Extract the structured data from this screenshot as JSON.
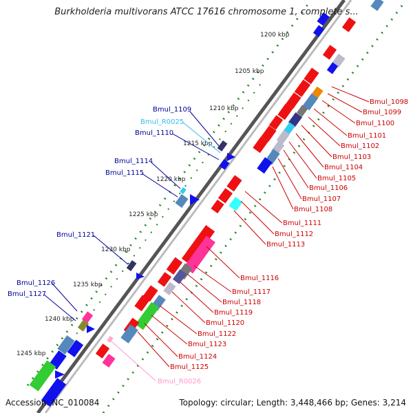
{
  "title": "Burkholderia multivorans ATCC 17616 chromosome 1, complete s...",
  "accession": "Accession: NC_010084",
  "summary": "Topology: circular; Length: 3,448,466 bp; Genes: 3,214",
  "kbp_ticks": [
    "1200 kbp",
    "1205 kbp",
    "1210 kbp",
    "1215 kbp",
    "1220 kbp",
    "1225 kbp",
    "1230 kbp",
    "1235 kbp",
    "1240 kbp",
    "1245 kbp"
  ],
  "left_labels": [
    "Bmul_1109",
    "Bmul_R0025",
    "Bmul_1110",
    "Bmul_1114",
    "Bmul_1115",
    "Bmul_1121",
    "Bmul_1126",
    "Bmul_1127"
  ],
  "right_labels": [
    "Bmul_1098",
    "Bmul_1099",
    "Bmul_1100",
    "Bmul_1101",
    "Bmul_1102",
    "Bmul_1103",
    "Bmul_1104",
    "Bmul_1105",
    "Bmul_1106",
    "Bmul_1107",
    "Bmul_1108",
    "Bmul_1111",
    "Bmul_1112",
    "Bmul_1113",
    "Bmul_1116",
    "Bmul_1117",
    "Bmul_1118",
    "Bmul_1119",
    "Bmul_1120",
    "Bmul_1122",
    "Bmul_1123",
    "Bmul_1124",
    "Bmul_1125",
    "Bmul_R0026"
  ],
  "colors": {
    "forward_cds": "#ee1111",
    "reverse_cds": "#1111ee",
    "rna_gene": "#33ccee",
    "pink_gene": "#ff3399",
    "green_gene": "#33cc33",
    "steel_gene": "#5588bb",
    "gray_gene": "#bbbbcc",
    "orange_gene": "#ee8800",
    "navy_gene": "#333388",
    "olive_gene": "#888833",
    "backbone": "#888888",
    "tick_dots": "#228822",
    "left_label": "#000099",
    "right_label": "#cc0000",
    "rna_label": "#33bbee",
    "r0026_label": "#ff99cc"
  }
}
